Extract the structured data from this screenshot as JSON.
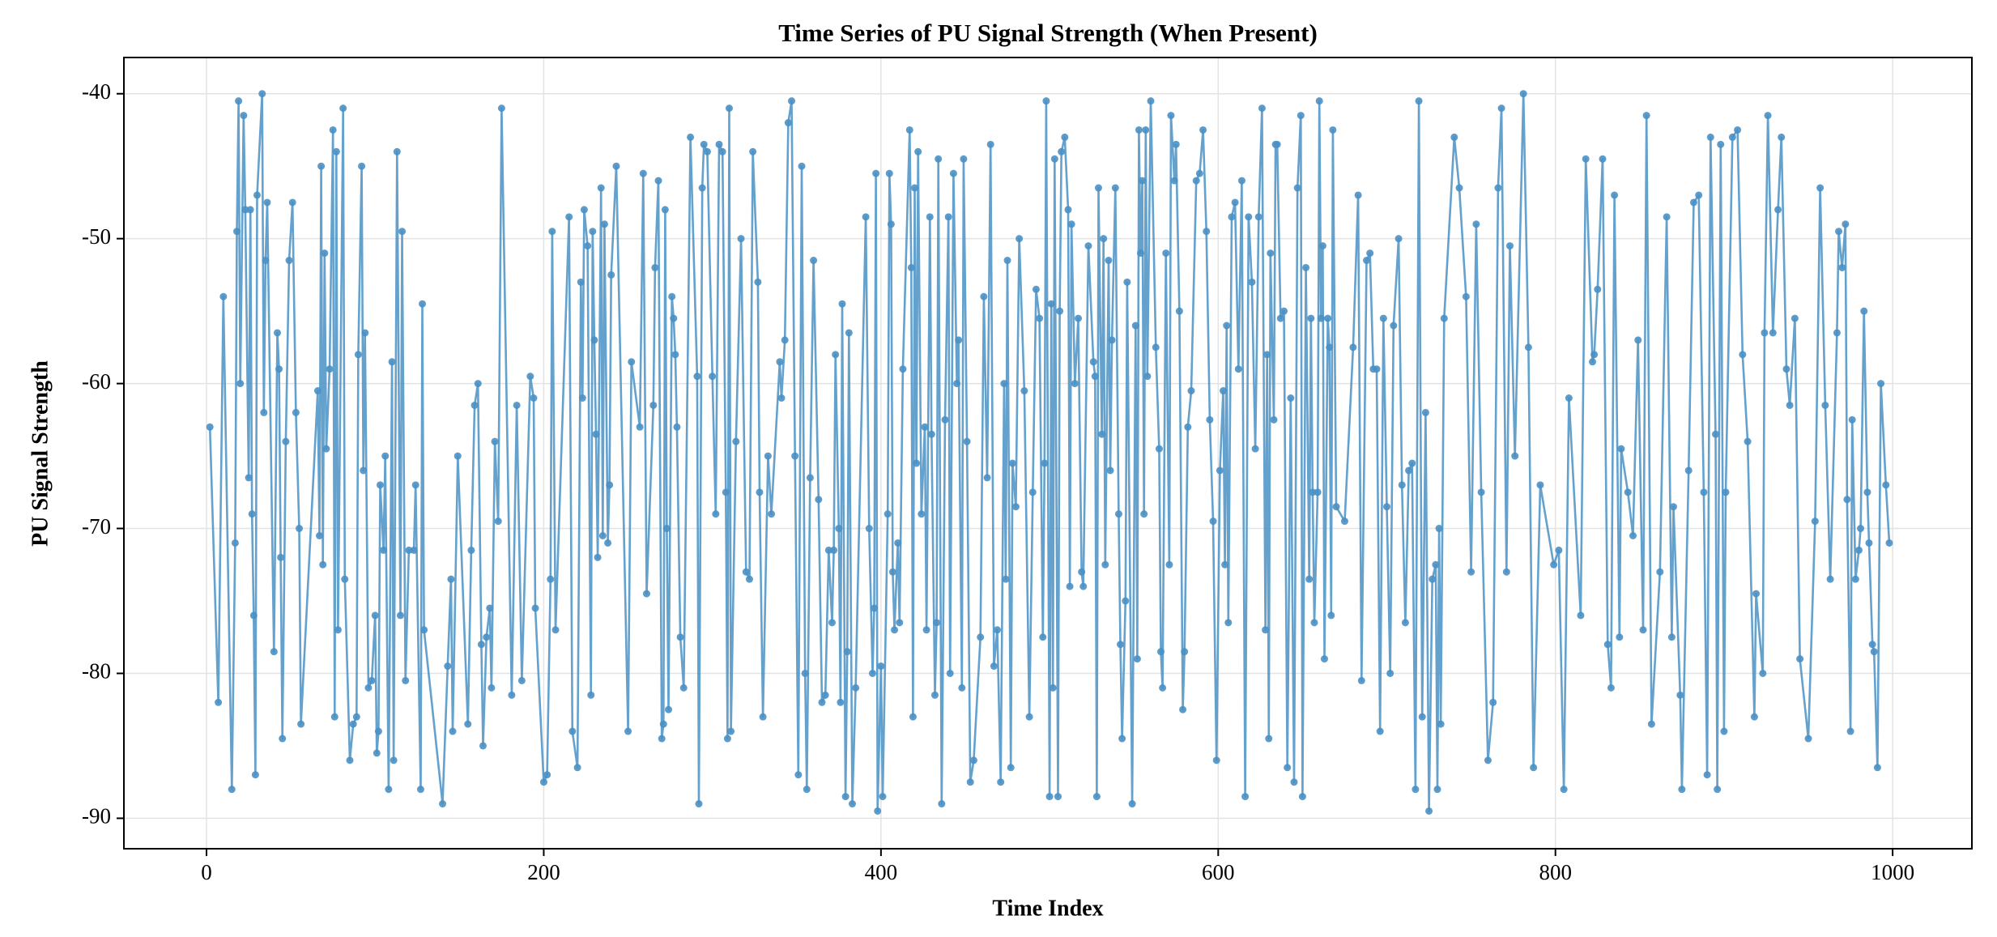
{
  "chart_data": {
    "type": "line",
    "title": "Time Series of PU Signal Strength (When Present)",
    "xlabel": "Time Index",
    "ylabel": "PU Signal Strength",
    "xlim": [
      -49,
      1047
    ],
    "ylim": [
      -92.1,
      -37.5
    ],
    "xticks": [
      0,
      200,
      400,
      600,
      800,
      1000
    ],
    "yticks": [
      -90,
      -80,
      -70,
      -60,
      -50,
      -40
    ],
    "grid": true,
    "markers": true,
    "x": [
      2,
      7,
      10,
      15,
      17,
      18,
      19,
      20,
      22,
      23,
      25,
      26,
      27,
      28,
      29,
      30,
      33,
      34,
      35,
      36,
      40,
      42,
      43,
      44,
      45,
      47,
      49,
      51,
      53,
      55,
      56,
      66,
      67,
      68,
      69,
      70,
      71,
      73,
      75,
      76,
      77,
      78,
      81,
      82,
      85,
      87,
      89,
      90,
      92,
      93,
      94,
      96,
      98,
      100,
      101,
      102,
      103,
      105,
      106,
      108,
      110,
      111,
      113,
      115,
      116,
      118,
      120,
      123,
      124,
      127,
      128,
      129,
      140,
      143,
      145,
      146,
      149,
      155,
      157,
      159,
      161,
      163,
      164,
      166,
      168,
      169,
      171,
      173,
      175,
      181,
      184,
      187,
      192,
      194,
      195,
      200,
      202,
      204,
      205,
      207,
      215,
      217,
      220,
      222,
      223,
      224,
      226,
      228,
      229,
      230,
      231,
      232,
      234,
      235,
      236,
      238,
      239,
      240,
      243,
      250,
      252,
      257,
      259,
      261,
      265,
      266,
      268,
      270,
      271,
      272,
      273,
      274,
      276,
      277,
      278,
      279,
      281,
      283,
      287,
      291,
      292,
      294,
      295,
      297,
      300,
      302,
      304,
      306,
      308,
      309,
      310,
      311,
      314,
      317,
      320,
      322,
      324,
      327,
      328,
      330,
      333,
      335,
      340,
      341,
      343,
      345,
      347,
      349,
      351,
      353,
      355,
      356,
      358,
      360,
      363,
      365,
      367,
      369,
      371,
      372,
      373,
      375,
      376,
      377,
      379,
      380,
      381,
      383,
      385,
      391,
      393,
      395,
      396,
      397,
      398,
      400,
      401,
      404,
      405,
      406,
      407,
      408,
      410,
      411,
      413,
      417,
      418,
      419,
      420,
      421,
      422,
      424,
      426,
      427,
      429,
      430,
      432,
      433,
      434,
      436,
      438,
      440,
      441,
      443,
      445,
      446,
      448,
      449,
      451,
      453,
      455,
      459,
      461,
      463,
      465,
      467,
      469,
      471,
      473,
      474,
      475,
      477,
      478,
      480,
      482,
      485,
      488,
      490,
      492,
      494,
      496,
      497,
      498,
      500,
      501,
      502,
      503,
      505,
      506,
      507,
      509,
      511,
      512,
      513,
      515,
      517,
      519,
      520,
      523,
      526,
      527,
      528,
      529,
      531,
      532,
      533,
      535,
      536,
      537,
      539,
      541,
      542,
      543,
      545,
      546,
      549,
      551,
      552,
      553,
      554,
      555,
      556,
      557,
      558,
      560,
      563,
      565,
      566,
      567,
      569,
      571,
      572,
      574,
      575,
      577,
      579,
      580,
      582,
      584,
      587,
      589,
      591,
      593,
      595,
      597,
      599,
      601,
      603,
      604,
      605,
      606,
      608,
      610,
      612,
      614,
      616,
      618,
      620,
      622,
      624,
      626,
      628,
      629,
      630,
      631,
      633,
      634,
      635,
      637,
      639,
      641,
      643,
      645,
      647,
      649,
      650,
      652,
      654,
      655,
      656,
      657,
      659,
      660,
      661,
      662,
      663,
      665,
      666,
      667,
      668,
      670,
      675,
      680,
      683,
      685,
      688,
      690,
      692,
      694,
      696,
      698,
      700,
      702,
      704,
      707,
      709,
      711,
      713,
      715,
      717,
      719,
      721,
      723,
      725,
      727,
      729,
      730,
      731,
      732,
      734,
      740,
      743,
      747,
      750,
      753,
      756,
      760,
      763,
      766,
      768,
      771,
      773,
      776,
      781,
      784,
      787,
      791,
      799,
      802,
      805,
      808,
      815,
      818,
      822,
      823,
      825,
      828,
      831,
      833,
      835,
      838,
      839,
      843,
      846,
      849,
      852,
      854,
      857,
      862,
      866,
      869,
      870,
      874,
      875,
      879,
      882,
      885,
      888,
      890,
      892,
      895,
      896,
      898,
      900,
      901,
      905,
      908,
      911,
      914,
      918,
      919,
      923,
      924,
      926,
      929,
      932,
      934,
      937,
      939,
      942,
      945,
      950,
      954,
      957,
      960,
      963,
      967,
      968,
      970,
      972,
      973,
      975,
      976,
      978,
      980,
      981,
      983,
      985,
      986,
      988,
      989,
      991,
      993,
      996,
      998
    ],
    "series": [
      {
        "color": "#4a90c4",
        "values": [
          -63,
          -82,
          -54,
          -88,
          -71,
          -49.5,
          -40.5,
          -60,
          -41.5,
          -48,
          -66.5,
          -48,
          -69,
          -76,
          -87,
          -47,
          -40,
          -62,
          -51.5,
          -47.5,
          -78.5,
          -56.5,
          -59,
          -72,
          -84.5,
          -64,
          -51.5,
          -47.5,
          -62,
          -70,
          -83.5,
          -60.5,
          -70.5,
          -45,
          -72.5,
          -51,
          -64.5,
          -59,
          -42.5,
          -83,
          -44,
          -77,
          -41,
          -73.5,
          -86,
          -83.5,
          -83,
          -58,
          -45,
          -66,
          -56.5,
          -81,
          -80.5,
          -76,
          -85.5,
          -84,
          -67,
          -71.5,
          -65,
          -88,
          -58.5,
          -86,
          -44,
          -76,
          -49.5,
          -80.5,
          -71.5,
          -71.5,
          -67,
          -88,
          -54.5,
          -77,
          -89,
          -79.5,
          -73.5,
          -84,
          -65,
          -83.5,
          -71.5,
          -61.5,
          -60,
          -78,
          -85,
          -77.5,
          -75.5,
          -81,
          -64,
          -69.5,
          -41,
          -81.5,
          -61.5,
          -80.5,
          -59.5,
          -61,
          -75.5,
          -87.5,
          -87,
          -73.5,
          -49.5,
          -77,
          -48.5,
          -84,
          -86.5,
          -53,
          -61,
          -48,
          -50.5,
          -81.5,
          -49.5,
          -57,
          -63.5,
          -72,
          -46.5,
          -70.5,
          -49,
          -71,
          -67,
          -52.5,
          -45,
          -84,
          -58.5,
          -63,
          -45.5,
          -74.5,
          -61.5,
          -52,
          -46,
          -84.5,
          -83.5,
          -48,
          -70,
          -82.5,
          -54,
          -55.5,
          -58,
          -63,
          -77.5,
          -81,
          -43,
          -59.5,
          -89,
          -46.5,
          -43.5,
          -44,
          -59.5,
          -69,
          -43.5,
          -44,
          -67.5,
          -84.5,
          -41,
          -84,
          -64,
          -50,
          -73,
          -73.5,
          -44,
          -53,
          -67.5,
          -83,
          -65,
          -69,
          -58.5,
          -61,
          -57,
          -42,
          -40.5,
          -65,
          -87,
          -45,
          -80,
          -88,
          -66.5,
          -51.5,
          -68,
          -82,
          -81.5,
          -71.5,
          -76.5,
          -71.5,
          -58,
          -70,
          -82,
          -54.5,
          -88.5,
          -78.5,
          -56.5,
          -89,
          -81,
          -48.5,
          -70,
          -80,
          -75.5,
          -45.5,
          -89.5,
          -79.5,
          -88.5,
          -69,
          -45.5,
          -49,
          -73,
          -77,
          -71,
          -76.5,
          -59,
          -42.5,
          -52,
          -83,
          -46.5,
          -65.5,
          -44,
          -69,
          -63,
          -77,
          -48.5,
          -63.5,
          -81.5,
          -76.5,
          -44.5,
          -89,
          -62.5,
          -48.5,
          -80,
          -45.5,
          -60,
          -57,
          -81,
          -44.5,
          -64,
          -87.5,
          -86,
          -77.5,
          -54,
          -66.5,
          -43.5,
          -79.5,
          -77,
          -87.5,
          -60,
          -73.5,
          -51.5,
          -86.5,
          -65.5,
          -68.5,
          -50,
          -60.5,
          -83,
          -67.5,
          -53.5,
          -55.5,
          -77.5,
          -65.5,
          -40.5,
          -88.5,
          -54.5,
          -81,
          -44.5,
          -88.5,
          -55,
          -44,
          -43,
          -48,
          -74,
          -49,
          -60,
          -55.5,
          -73,
          -74,
          -50.5,
          -58.5,
          -59.5,
          -88.5,
          -46.5,
          -63.5,
          -50,
          -72.5,
          -51.5,
          -66,
          -57,
          -46.5,
          -69,
          -78,
          -84.5,
          -75,
          -53,
          -89,
          -56,
          -79,
          -42.5,
          -51,
          -46,
          -69,
          -42.5,
          -59.5,
          -40.5,
          -57.5,
          -64.5,
          -78.5,
          -81,
          -51,
          -72.5,
          -41.5,
          -46,
          -43.5,
          -55,
          -82.5,
          -78.5,
          -63,
          -60.5,
          -46,
          -45.5,
          -42.5,
          -49.5,
          -62.5,
          -69.5,
          -86,
          -66,
          -60.5,
          -72.5,
          -56,
          -76.5,
          -48.5,
          -47.5,
          -59,
          -46,
          -88.5,
          -48.5,
          -53,
          -64.5,
          -48.5,
          -41,
          -77,
          -58,
          -84.5,
          -51,
          -62.5,
          -43.5,
          -43.5,
          -55.5,
          -55,
          -86.5,
          -61,
          -87.5,
          -46.5,
          -41.5,
          -88.5,
          -52,
          -73.5,
          -55.5,
          -67.5,
          -76.5,
          -67.5,
          -40.5,
          -55.5,
          -50.5,
          -79,
          -55.5,
          -57.5,
          -76,
          -42.5,
          -68.5,
          -69.5,
          -57.5,
          -47,
          -80.5,
          -51.5,
          -51,
          -59,
          -59,
          -84,
          -55.5,
          -68.5,
          -80,
          -56,
          -50,
          -67,
          -76.5,
          -66,
          -65.5,
          -88,
          -40.5,
          -83,
          -62,
          -89.5,
          -73.5,
          -72.5,
          -88,
          -70,
          -83.5,
          -55.5,
          -43,
          -46.5,
          -54,
          -73,
          -49,
          -67.5,
          -86,
          -82,
          -46.5,
          -41,
          -73,
          -50.5,
          -65,
          -40,
          -57.5,
          -86.5,
          -67,
          -72.5,
          -71.5,
          -88,
          -61,
          -76,
          -44.5,
          -58.5,
          -58,
          -53.5,
          -44.5,
          -78,
          -81,
          -47,
          -77.5,
          -64.5,
          -67.5,
          -70.5,
          -57,
          -77,
          -41.5,
          -83.5,
          -73,
          -48.5,
          -77.5,
          -68.5,
          -81.5,
          -88,
          -66,
          -47.5,
          -47,
          -67.5,
          -87,
          -43,
          -63.5,
          -88,
          -43.5,
          -84,
          -67.5,
          -43,
          -42.5,
          -58,
          -64,
          -83,
          -74.5,
          -80,
          -56.5,
          -41.5,
          -56.5,
          -48,
          -43,
          -59,
          -61.5,
          -55.5,
          -79,
          -84.5,
          -69.5,
          -46.5,
          -61.5,
          -73.5,
          -56.5,
          -49.5,
          -52,
          -49,
          -68,
          -84,
          -62.5,
          -73.5,
          -71.5,
          -70,
          -55,
          -67.5,
          -71,
          -78,
          -78.5,
          -86.5,
          -60,
          -67,
          -71
        ]
      }
    ]
  }
}
